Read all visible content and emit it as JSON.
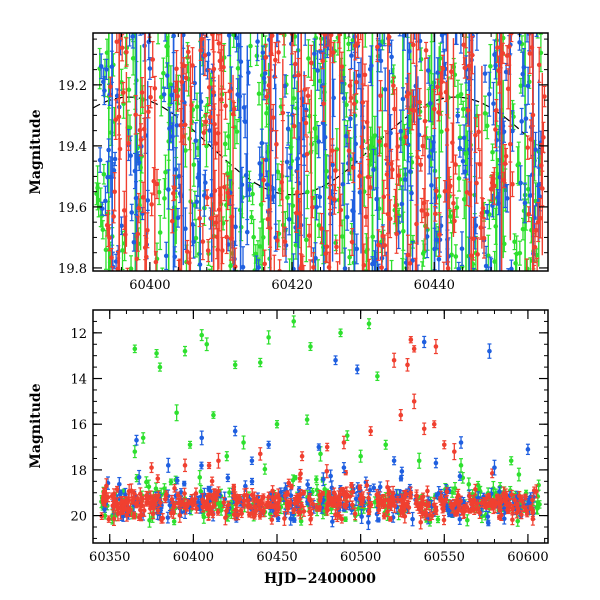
{
  "chart_data": [
    {
      "type": "scatter",
      "panel": "top",
      "xlabel": "",
      "ylabel": "Magnitude",
      "xlim": [
        60392,
        60456
      ],
      "ylim": [
        19.03,
        19.81
      ],
      "y_inverted": true,
      "x_ticks": [
        60400,
        60420,
        60440
      ],
      "y_ticks": [
        19.2,
        19.4,
        19.6,
        19.8
      ],
      "grid": false,
      "legend": "none",
      "overlay": {
        "type": "sinusoid",
        "style": "dashed",
        "color": "#000000",
        "mean": 19.4,
        "amplitude": 0.16,
        "period": 46,
        "phase_x": 60420
      },
      "series": [
        {
          "color": "#2ee02e",
          "spans": [
            [
              60392.5,
              60395
            ],
            [
              60396,
              60399
            ],
            [
              60401,
              60404
            ],
            [
              60405,
              60409
            ],
            [
              60410,
              60413
            ],
            [
              60414,
              60417
            ],
            [
              60418,
              60421
            ],
            [
              60422,
              60425
            ],
            [
              60426,
              60429
            ],
            [
              60430,
              60433
            ],
            [
              60434,
              60437
            ],
            [
              60438,
              60441
            ],
            [
              60442,
              60446
            ],
            [
              60447,
              60450
            ],
            [
              60451,
              60455
            ]
          ]
        },
        {
          "color": "#1f5fe0",
          "spans": [
            [
              60393,
              60396
            ],
            [
              60397,
              60400
            ],
            [
              60402,
              60405
            ],
            [
              60406,
              60409
            ],
            [
              60411,
              60414
            ],
            [
              60415,
              60418
            ],
            [
              60419,
              60422
            ],
            [
              60423,
              60426
            ],
            [
              60427,
              60430
            ],
            [
              60431,
              60434
            ],
            [
              60435,
              60438
            ],
            [
              60439,
              60442
            ],
            [
              60443,
              60446
            ],
            [
              60447,
              60451
            ],
            [
              60452,
              60455
            ]
          ]
        },
        {
          "color": "#f04030",
          "spans": [
            [
              60394,
              60397
            ],
            [
              60398,
              60401
            ],
            [
              60403,
              60406
            ],
            [
              60407,
              60410
            ],
            [
              60409,
              60412
            ],
            [
              60416,
              60419
            ],
            [
              60420,
              60423
            ],
            [
              60424,
              60427
            ],
            [
              60428,
              60431
            ],
            [
              60432,
              60435
            ],
            [
              60436,
              60439
            ],
            [
              60440,
              60443
            ],
            [
              60444,
              60447
            ],
            [
              60448,
              60451
            ],
            [
              60453,
              60455.5
            ]
          ]
        }
      ]
    },
    {
      "type": "scatter",
      "panel": "bottom",
      "xlabel": "HJD−2400000",
      "ylabel": "Magnitude",
      "xlim": [
        60340,
        60612
      ],
      "ylim": [
        11.0,
        21.2
      ],
      "y_inverted": true,
      "x_ticks": [
        60350,
        60400,
        60450,
        60500,
        60550,
        60600
      ],
      "y_ticks": [
        12,
        14,
        16,
        18,
        20
      ],
      "grid": false,
      "legend": "none",
      "baseline": {
        "start": 60345,
        "end": 60607,
        "mean": 19.5,
        "spread": 0.55
      },
      "series": [
        {
          "color": "#2ee02e",
          "outliers": [
            [
              60365,
              12.7
            ],
            [
              60378,
              12.9
            ],
            [
              60380,
              13.5
            ],
            [
              60395,
              12.8
            ],
            [
              60405,
              12.1
            ],
            [
              60408,
              12.5
            ],
            [
              60425,
              13.4
            ],
            [
              60440,
              13.3
            ],
            [
              60445,
              12.2
            ],
            [
              60460,
              11.5
            ],
            [
              60470,
              12.6
            ],
            [
              60488,
              12.0
            ],
            [
              60505,
              11.6
            ],
            [
              60510,
              13.9
            ],
            [
              60370,
              16.6
            ],
            [
              60390,
              15.5
            ],
            [
              60412,
              15.6
            ],
            [
              60430,
              16.8
            ],
            [
              60450,
              16.0
            ],
            [
              60468,
              15.8
            ],
            [
              60492,
              16.5
            ],
            [
              60515,
              16.9
            ],
            [
              60365,
              17.2
            ],
            [
              60398,
              16.9
            ],
            [
              60420,
              17.4
            ],
            [
              60476,
              17.3
            ],
            [
              60500,
              17.4
            ],
            [
              60535,
              17.6
            ],
            [
              60560,
              17.8
            ],
            [
              60590,
              17.6
            ]
          ]
        },
        {
          "color": "#1f5fe0",
          "outliers": [
            [
              60485,
              13.2
            ],
            [
              60498,
              13.6
            ],
            [
              60538,
              12.4
            ],
            [
              60577,
              12.8
            ],
            [
              60366,
              16.7
            ],
            [
              60405,
              16.6
            ],
            [
              60425,
              16.3
            ],
            [
              60445,
              16.9
            ],
            [
              60475,
              17.0
            ],
            [
              60520,
              17.6
            ],
            [
              60560,
              16.8
            ],
            [
              60600,
              17.1
            ],
            [
              60385,
              17.8
            ],
            [
              60435,
              17.6
            ],
            [
              60490,
              17.9
            ],
            [
              60545,
              17.7
            ],
            [
              60580,
              17.9
            ]
          ]
        },
        {
          "color": "#f04030",
          "outliers": [
            [
              60530,
              12.3
            ],
            [
              60532,
              12.7
            ],
            [
              60545,
              12.6
            ],
            [
              60528,
              13.4
            ],
            [
              60520,
              13.2
            ],
            [
              60532,
              15.0
            ],
            [
              60538,
              16.2
            ],
            [
              60544,
              16.0
            ],
            [
              60550,
              16.9
            ],
            [
              60556,
              17.2
            ],
            [
              60524,
              15.6
            ],
            [
              60506,
              16.3
            ],
            [
              60490,
              16.8
            ],
            [
              60480,
              17.0
            ],
            [
              60465,
              17.4
            ],
            [
              60440,
              17.3
            ],
            [
              60415,
              17.6
            ],
            [
              60395,
              17.8
            ],
            [
              60375,
              17.9
            ],
            [
              60348,
              18.7
            ]
          ]
        }
      ]
    }
  ]
}
